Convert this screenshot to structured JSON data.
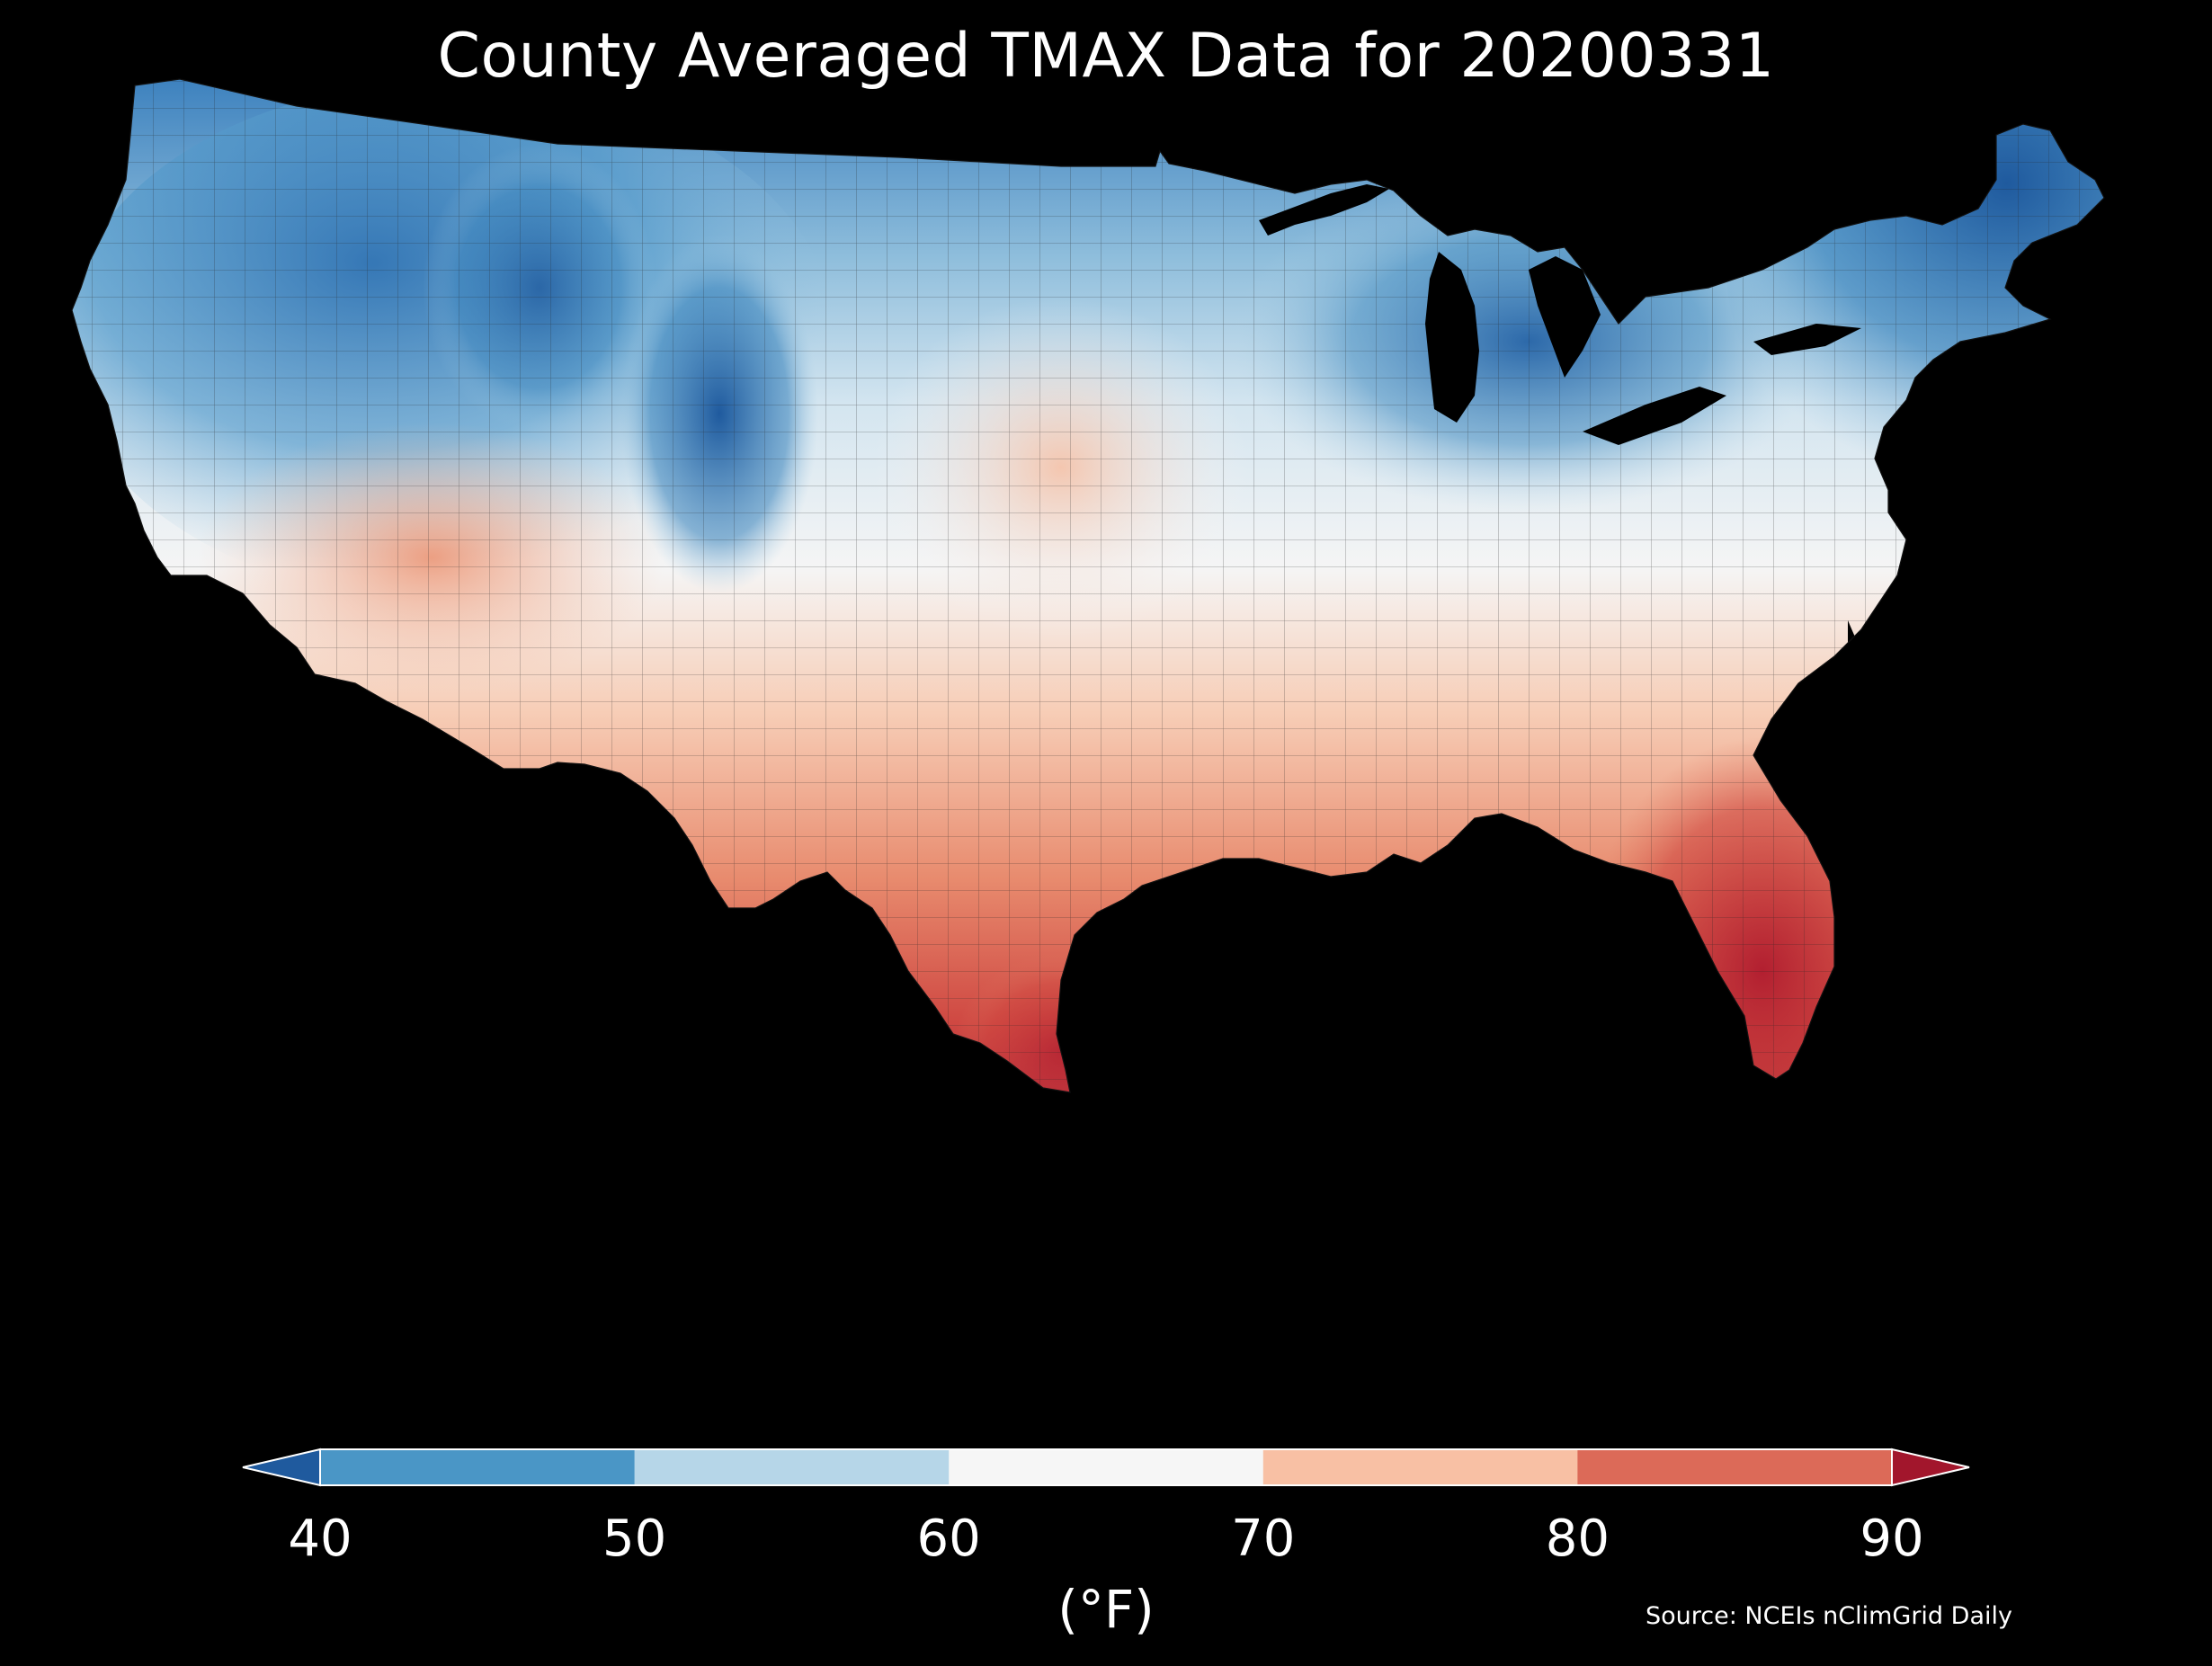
{
  "title": "County Averaged TMAX Data for 20200331",
  "colorbar": {
    "ticks": [
      "40",
      "50",
      "60",
      "70",
      "80",
      "90"
    ],
    "units": "(°F)",
    "bins": [
      {
        "range": "<40",
        "color": "#1f5a9e"
      },
      {
        "range": "40-50",
        "color": "#4a96c6"
      },
      {
        "range": "50-60",
        "color": "#b6d6e8"
      },
      {
        "range": "60-70",
        "color": "#f6f6f6"
      },
      {
        "range": "70-80",
        "color": "#f8c0a4"
      },
      {
        "range": "80-90",
        "color": "#dc6a58"
      },
      {
        "range": ">90",
        "color": "#a2162c"
      }
    ]
  },
  "source": "Source: NCEIs nClimGrid Daily",
  "colors": {
    "background": "#000000",
    "text": "#ffffff",
    "county_border": "#222222"
  }
}
